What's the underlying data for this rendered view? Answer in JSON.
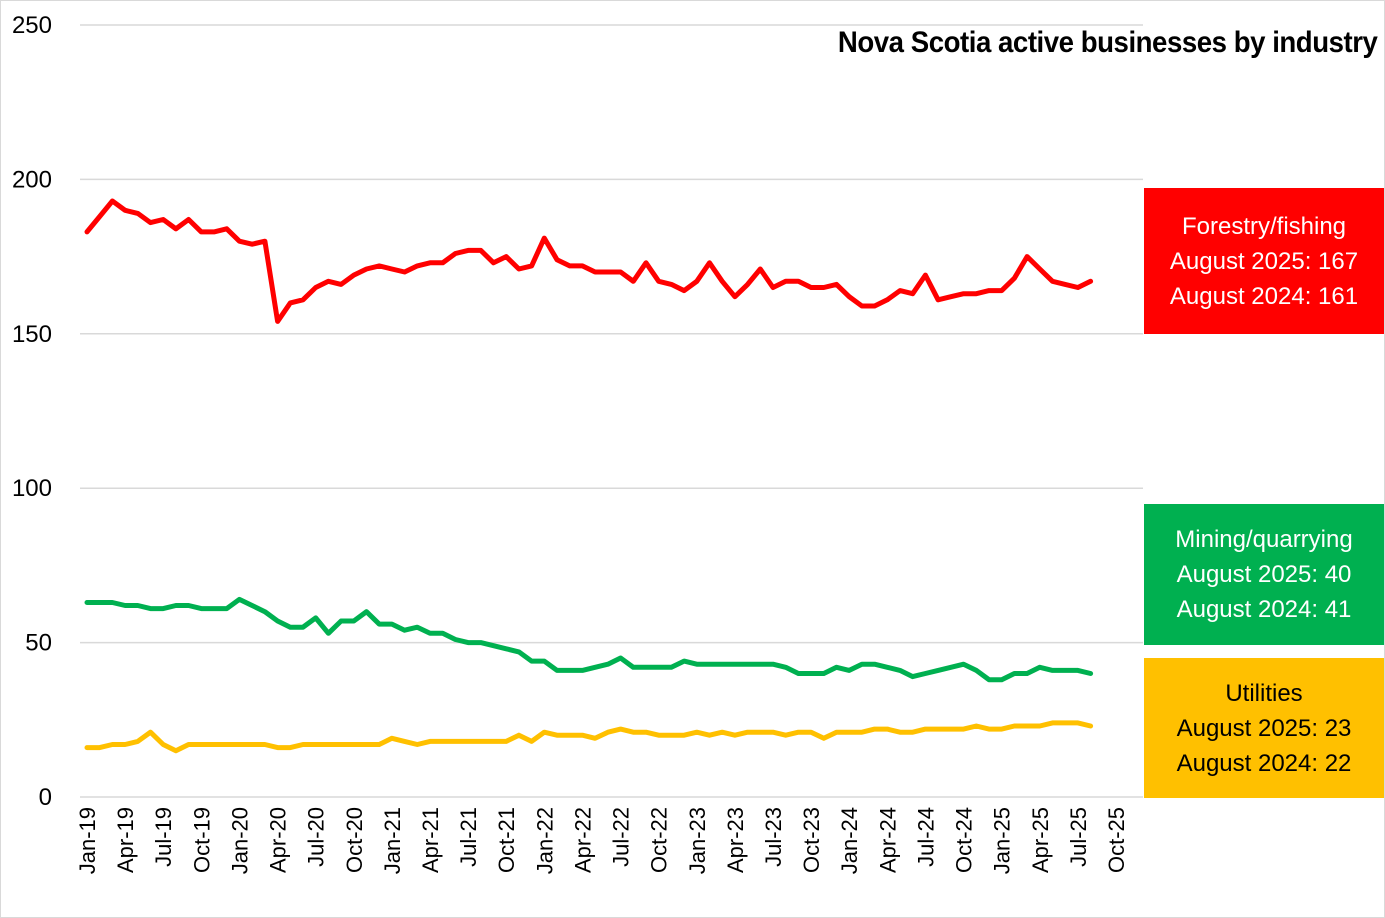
{
  "chart_data": {
    "type": "line",
    "title": "Nova Scotia active businesses by industry",
    "xlabel": "",
    "ylabel": "",
    "ylim": [
      0,
      250
    ],
    "yticks": [
      0,
      50,
      100,
      150,
      200,
      250
    ],
    "grid": true,
    "legend": "right (colored value boxes)",
    "x_tick_labels": [
      "Jan-19",
      "Apr-19",
      "Jul-19",
      "Oct-19",
      "Jan-20",
      "Apr-20",
      "Jul-20",
      "Oct-20",
      "Jan-21",
      "Apr-21",
      "Jul-21",
      "Oct-21",
      "Jan-22",
      "Apr-22",
      "Jul-22",
      "Oct-22",
      "Jan-23",
      "Apr-23",
      "Jul-23",
      "Oct-23",
      "Jan-24",
      "Apr-24",
      "Jul-24",
      "Oct-24",
      "Jan-25",
      "Apr-25",
      "Jul-25",
      "Oct-25"
    ],
    "x_start": "Jan-19",
    "x_end": "Oct-25",
    "x_months_total": 82,
    "series": [
      {
        "name": "Forestry/fishing",
        "color": "#ff0000",
        "values": [
          183,
          188,
          193,
          190,
          189,
          186,
          187,
          184,
          187,
          183,
          183,
          184,
          180,
          179,
          180,
          154,
          160,
          161,
          165,
          167,
          166,
          169,
          171,
          172,
          171,
          170,
          172,
          173,
          173,
          176,
          177,
          177,
          173,
          175,
          171,
          172,
          181,
          174,
          172,
          172,
          170,
          170,
          170,
          167,
          173,
          167,
          166,
          164,
          167,
          173,
          167,
          162,
          166,
          171,
          165,
          167,
          167,
          165,
          165,
          166,
          162,
          159,
          159,
          161,
          164,
          163,
          169,
          161,
          162,
          163,
          163,
          164,
          164,
          168,
          175,
          171,
          167,
          166,
          165,
          167
        ]
      },
      {
        "name": "Mining/quarrying",
        "color": "#00b050",
        "values": [
          63,
          63,
          63,
          62,
          62,
          61,
          61,
          62,
          62,
          61,
          61,
          61,
          64,
          62,
          60,
          57,
          55,
          55,
          58,
          53,
          57,
          57,
          60,
          56,
          56,
          54,
          55,
          53,
          53,
          51,
          50,
          50,
          49,
          48,
          47,
          44,
          44,
          41,
          41,
          41,
          42,
          43,
          45,
          42,
          42,
          42,
          42,
          44,
          43,
          43,
          43,
          43,
          43,
          43,
          43,
          42,
          40,
          40,
          40,
          42,
          41,
          43,
          43,
          42,
          41,
          39,
          40,
          41,
          42,
          43,
          41,
          38,
          38,
          40,
          40,
          42,
          41,
          41,
          41,
          40
        ]
      },
      {
        "name": "Utilities",
        "color": "#ffc000",
        "values": [
          16,
          16,
          17,
          17,
          18,
          21,
          17,
          15,
          17,
          17,
          17,
          17,
          17,
          17,
          17,
          16,
          16,
          17,
          17,
          17,
          17,
          17,
          17,
          17,
          19,
          18,
          17,
          18,
          18,
          18,
          18,
          18,
          18,
          18,
          20,
          18,
          21,
          20,
          20,
          20,
          19,
          21,
          22,
          21,
          21,
          20,
          20,
          20,
          21,
          20,
          21,
          20,
          21,
          21,
          21,
          20,
          21,
          21,
          19,
          21,
          21,
          21,
          22,
          22,
          21,
          21,
          22,
          22,
          22,
          22,
          23,
          22,
          22,
          23,
          23,
          23,
          24,
          24,
          24,
          23
        ]
      }
    ]
  },
  "boxes": {
    "forestry": {
      "name": "Forestry/fishing",
      "line1": "August 2025: 167",
      "line2": "August 2024: 161",
      "bg": "#ff0000"
    },
    "mining": {
      "name": "Mining/quarrying",
      "line1": "August 2025: 40",
      "line2": "August 2024: 41",
      "bg": "#00b050"
    },
    "utilities": {
      "name": "Utilities",
      "line1": "August 2025: 23",
      "line2": "August 2024: 22",
      "bg": "#ffc000"
    }
  }
}
